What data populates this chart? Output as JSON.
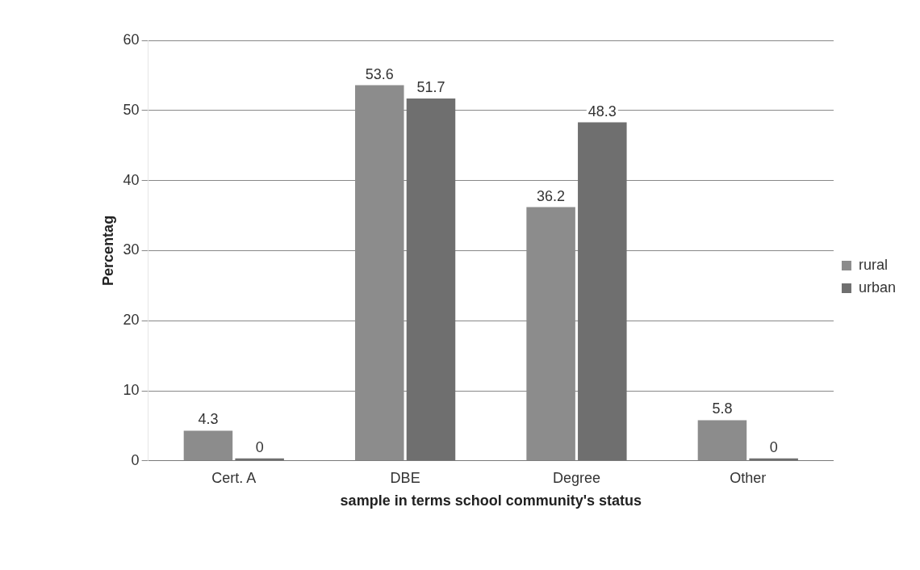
{
  "chart_data": {
    "type": "bar",
    "xlabel": "sample in terms school community's status",
    "ylabel": "Percentag",
    "categories": [
      "Cert. A",
      "DBE",
      "Degree",
      "Other"
    ],
    "series": [
      {
        "name": "rural",
        "color": "#8c8c8c",
        "values": [
          4.3,
          53.6,
          36.2,
          5.8
        ]
      },
      {
        "name": "urban",
        "color": "#6f6f6f",
        "values": [
          0,
          51.7,
          48.3,
          0
        ]
      }
    ],
    "ylim": [
      0,
      60
    ],
    "yticks": [
      0,
      10,
      20,
      30,
      40,
      50,
      60
    ],
    "grid": "y",
    "legend": "right",
    "data_labels": true
  }
}
